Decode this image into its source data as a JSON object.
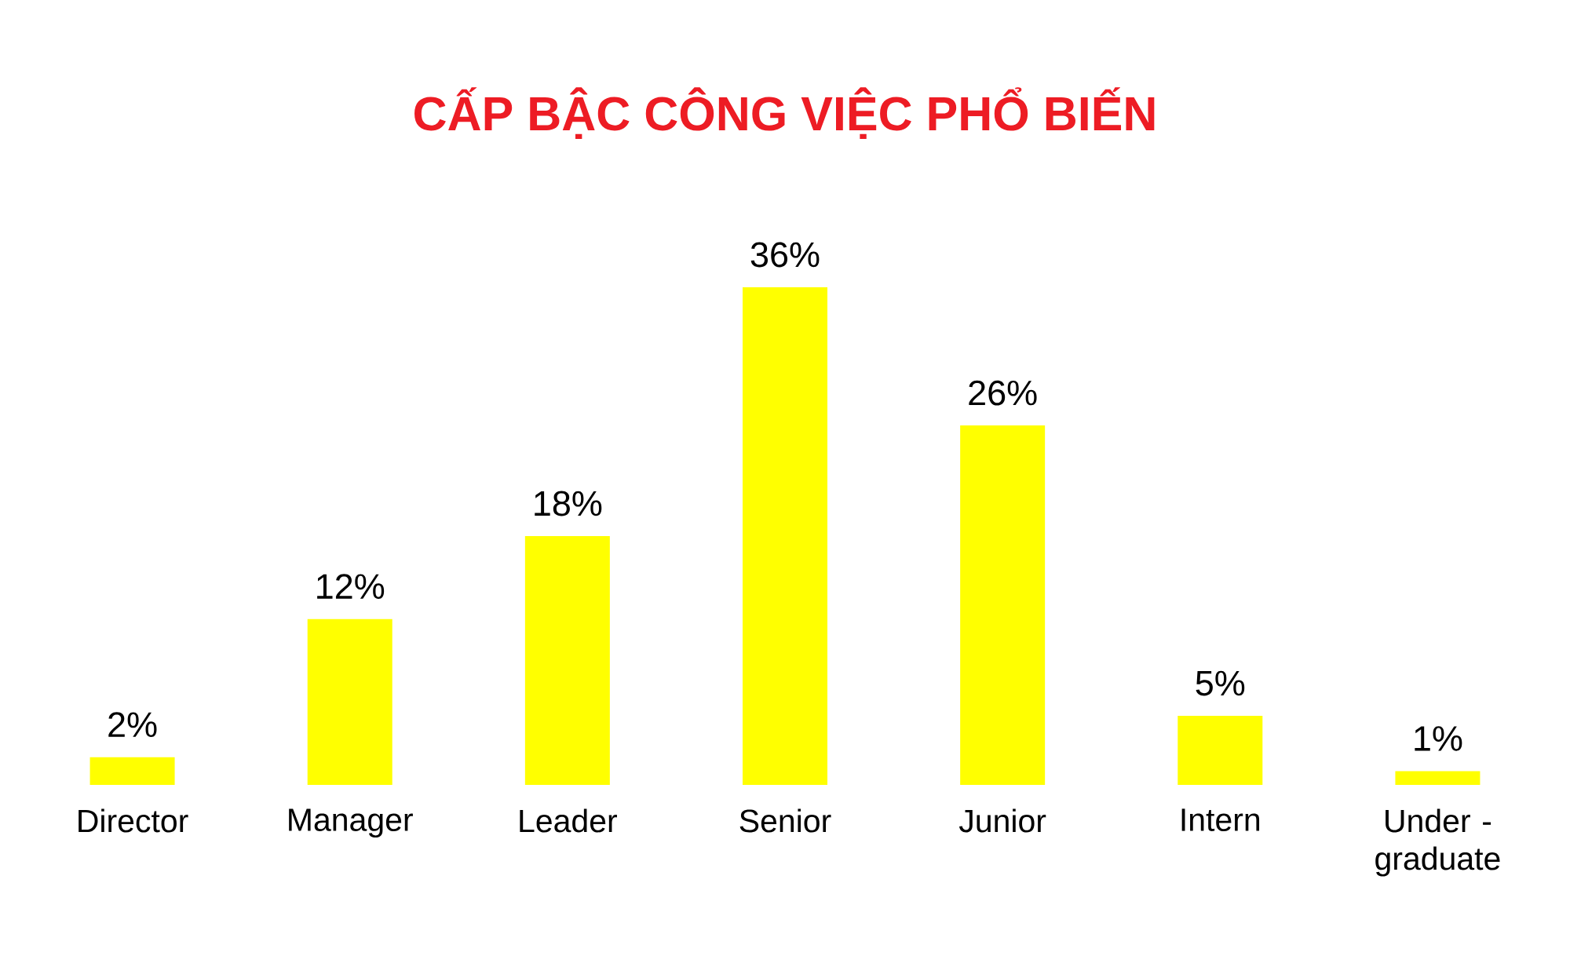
{
  "chart_data": {
    "type": "bar",
    "title": "CẤP BẬC CÔNG VIỆC PHỔ BIẾN",
    "categories": [
      "Director",
      "Manager",
      "Leader",
      "Senior",
      "Junior",
      "Intern",
      "Under - graduate"
    ],
    "values": [
      2,
      12,
      18,
      36,
      26,
      5,
      1
    ],
    "value_labels": [
      "2%",
      "12%",
      "18%",
      "36%",
      "26%",
      "5%",
      "1%"
    ],
    "color": "#ffff00"
  }
}
